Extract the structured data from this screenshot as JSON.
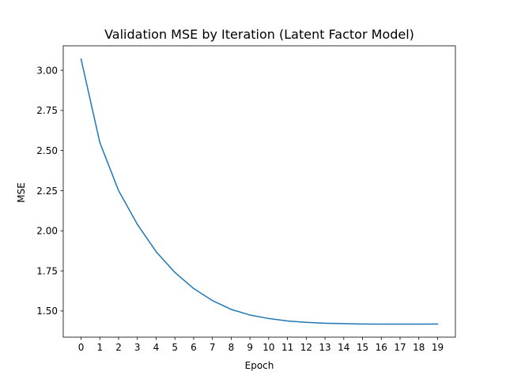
{
  "chart_data": {
    "type": "line",
    "title": "Validation MSE by Iteration (Latent Factor Model)",
    "xlabel": "Epoch",
    "ylabel": "MSE",
    "x": [
      0,
      1,
      2,
      3,
      4,
      5,
      6,
      7,
      8,
      9,
      10,
      11,
      12,
      13,
      14,
      15,
      16,
      17,
      18,
      19
    ],
    "series": [
      {
        "values": [
          3.07,
          2.55,
          2.25,
          2.04,
          1.87,
          1.74,
          1.64,
          1.565,
          1.51,
          1.475,
          1.453,
          1.438,
          1.429,
          1.424,
          1.421,
          1.419,
          1.418,
          1.418,
          1.418,
          1.419
        ],
        "color": "#1f77b4"
      }
    ],
    "xticks": [
      "0",
      "1",
      "2",
      "3",
      "4",
      "5",
      "6",
      "7",
      "8",
      "9",
      "10",
      "11",
      "12",
      "13",
      "14",
      "15",
      "16",
      "17",
      "18",
      "19"
    ],
    "yticks": [
      "1.50",
      "1.75",
      "2.00",
      "2.25",
      "2.50",
      "2.75",
      "3.00"
    ],
    "ytick_values": [
      1.5,
      1.75,
      2.0,
      2.25,
      2.5,
      2.75,
      3.0
    ],
    "xlim": [
      -0.95,
      19.95
    ],
    "ylim": [
      1.337,
      3.153
    ],
    "grid": false,
    "legend": "none"
  }
}
